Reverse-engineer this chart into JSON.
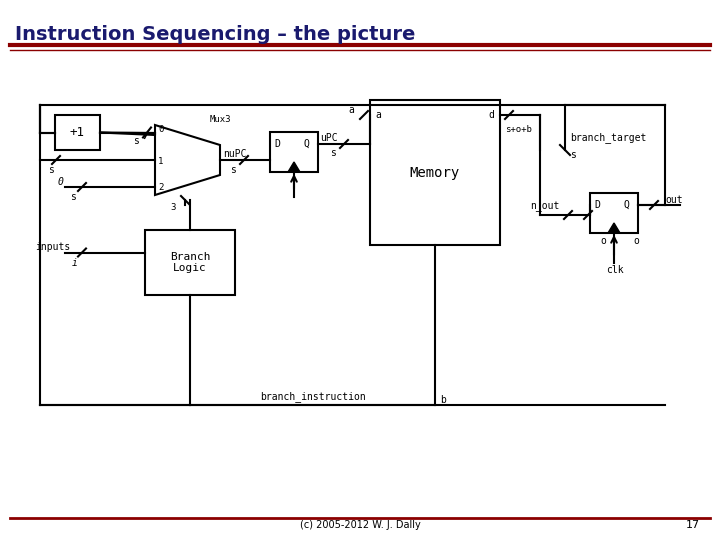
{
  "title": "Instruction Sequencing – the picture",
  "title_color": "#1a1a6e",
  "title_fontsize": 14,
  "bg_color": "#ffffff",
  "line_color": "#000000",
  "red_line_color": "#8b0000",
  "footer_text": "(c) 2005-2012 W. J. Dally",
  "page_number": "17",
  "font_family": "sans-serif"
}
